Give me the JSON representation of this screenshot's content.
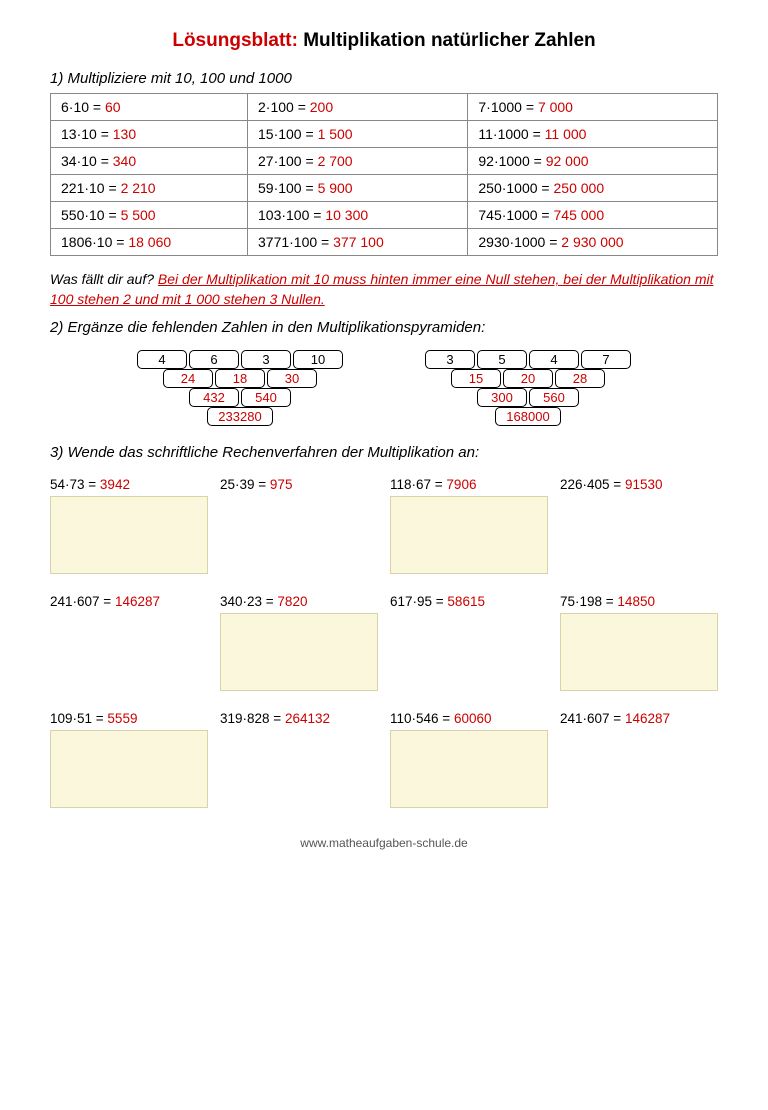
{
  "title": {
    "prefix": "Lösungsblatt:",
    "rest": " Multiplikation natürlicher Zahlen"
  },
  "section1": {
    "heading": "1) Multipliziere mit 10, 100 und 1000",
    "rows": [
      [
        {
          "q": "6·10  =",
          "a": "60"
        },
        {
          "q": "2·100 =",
          "a": "200"
        },
        {
          "q": "7·1000 =",
          "a": "7 000"
        }
      ],
      [
        {
          "q": "13·10  =",
          "a": "130"
        },
        {
          "q": "15·100 =",
          "a": "1 500"
        },
        {
          "q": "11·1000 =",
          "a": "11 000"
        }
      ],
      [
        {
          "q": "34·10  =",
          "a": "340"
        },
        {
          "q": "27·100 =",
          "a": "2 700"
        },
        {
          "q": "92·1000 =",
          "a": "92 000"
        }
      ],
      [
        {
          "q": "221·10 =",
          "a": "2 210"
        },
        {
          "q": "59·100 =",
          "a": "5 900"
        },
        {
          "q": "250·1000 =",
          "a": "250 000"
        }
      ],
      [
        {
          "q": "550·10 =",
          "a": "5 500"
        },
        {
          "q": "103·100 =",
          "a": "10 300"
        },
        {
          "q": "745·1000 =",
          "a": "745 000"
        }
      ],
      [
        {
          "q": "1806·10 =",
          "a": "18 060"
        },
        {
          "q": "3771·100 =",
          "a": "377 100"
        },
        {
          "q": "2930·1000 =",
          "a": "2 930 000"
        }
      ]
    ],
    "note_prefix": "Was fällt dir auf? ",
    "note_answer": "Bei der Multiplikation mit 10 muss hinten immer eine Null stehen, bei der Multiplikation mit 100 stehen 2 und mit 1 000 stehen 3 Nullen."
  },
  "section2": {
    "heading": "2) Ergänze die fehlenden Zahlen in den Multiplikationspyramiden:",
    "pyramids": [
      {
        "rows": [
          {
            "cells": [
              "4",
              "6",
              "3",
              "10"
            ],
            "red": false
          },
          {
            "cells": [
              "24",
              "18",
              "30"
            ],
            "red": true
          },
          {
            "cells": [
              "432",
              "540"
            ],
            "red": true
          },
          {
            "cells": [
              "233280"
            ],
            "red": true
          }
        ]
      },
      {
        "rows": [
          {
            "cells": [
              "3",
              "5",
              "4",
              "7"
            ],
            "red": false
          },
          {
            "cells": [
              "15",
              "20",
              "28"
            ],
            "red": true
          },
          {
            "cells": [
              "300",
              "560"
            ],
            "red": true
          },
          {
            "cells": [
              "168000"
            ],
            "red": true
          }
        ]
      }
    ]
  },
  "section3": {
    "heading": "3) Wende das schriftliche Rechenverfahren der Multiplikation an:",
    "exercises": [
      {
        "q": "54·73  =",
        "a": "3942",
        "box": true
      },
      {
        "q": "25·39  =",
        "a": "975",
        "box": false
      },
      {
        "q": "118·67 =",
        "a": "7906",
        "box": true
      },
      {
        "q": "226·405 =",
        "a": "91530",
        "box": false
      },
      {
        "q": "241·607 =",
        "a": "146287",
        "box": false
      },
      {
        "q": "340·23 =",
        "a": "7820",
        "box": true
      },
      {
        "q": "617·95 =",
        "a": "58615",
        "box": false
      },
      {
        "q": "75·198 =",
        "a": "14850",
        "box": true
      },
      {
        "q": "109·51 =",
        "a": "5559",
        "box": true
      },
      {
        "q": "319·828 =",
        "a": "264132",
        "box": false
      },
      {
        "q": "110·546 =",
        "a": "60060",
        "box": true
      },
      {
        "q": "241·607 =",
        "a": "146287",
        "box": false
      }
    ]
  },
  "footer": "www.matheaufgaben-schule.de",
  "colors": {
    "answer": "#cc0000",
    "box_bg": "#faf7dc",
    "box_border": "#d8d4a8",
    "table_border": "#888888"
  }
}
